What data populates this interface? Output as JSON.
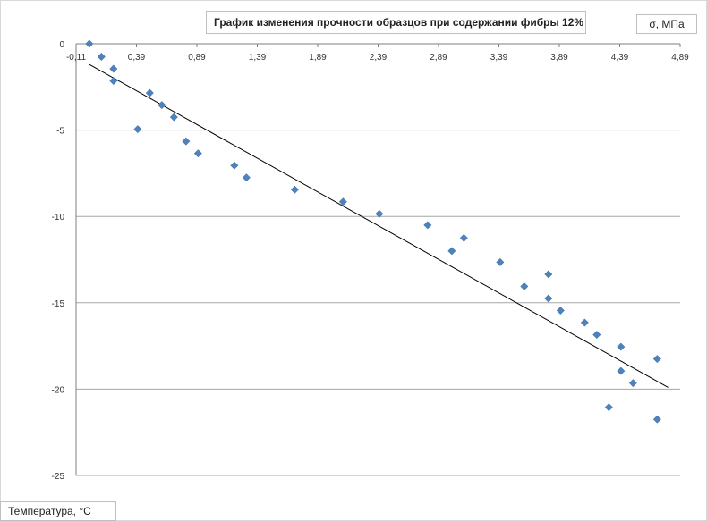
{
  "chart_data": {
    "type": "scatter",
    "title": "График изменения прочности образцов при содержании фибры 12%",
    "xlabel": "Температура, °С",
    "ylabel": "σ, МПа",
    "xlim": [
      -0.11,
      4.89
    ],
    "ylim": [
      -25,
      0
    ],
    "x_ticks": [
      -0.11,
      0.39,
      0.89,
      1.39,
      1.89,
      2.39,
      2.89,
      3.39,
      3.89,
      4.39,
      4.89
    ],
    "x_tick_labels": [
      "-0,11",
      "0,39",
      "0,89",
      "1,39",
      "1,89",
      "2,39",
      "2,89",
      "3,39",
      "3,89",
      "4,39",
      "4,89"
    ],
    "y_ticks": [
      0,
      -5,
      -10,
      -15,
      -20,
      -25
    ],
    "y_tick_labels": [
      "0",
      "-5",
      "-10",
      "-15",
      "-20",
      "-25"
    ],
    "grid": "horizontal",
    "marker_color": "#4f81bd",
    "series": [
      {
        "points": [
          [
            0.0,
            0.0
          ],
          [
            0.1,
            -0.75
          ],
          [
            0.2,
            -1.45
          ],
          [
            0.2,
            -2.15
          ],
          [
            0.4,
            -4.95
          ],
          [
            0.5,
            -2.85
          ],
          [
            0.6,
            -3.55
          ],
          [
            0.7,
            -4.25
          ],
          [
            0.8,
            -5.65
          ],
          [
            0.9,
            -6.35
          ],
          [
            1.2,
            -7.05
          ],
          [
            1.3,
            -7.75
          ],
          [
            1.7,
            -8.45
          ],
          [
            2.1,
            -9.15
          ],
          [
            2.4,
            -9.85
          ],
          [
            2.8,
            -10.5
          ],
          [
            3.0,
            -12.0
          ],
          [
            3.1,
            -11.25
          ],
          [
            3.4,
            -12.65
          ],
          [
            3.6,
            -14.05
          ],
          [
            3.8,
            -13.35
          ],
          [
            3.8,
            -14.75
          ],
          [
            3.9,
            -15.45
          ],
          [
            4.1,
            -16.15
          ],
          [
            4.2,
            -16.85
          ],
          [
            4.3,
            -21.05
          ],
          [
            4.4,
            -17.55
          ],
          [
            4.4,
            -18.95
          ],
          [
            4.5,
            -19.65
          ],
          [
            4.7,
            -18.25
          ],
          [
            4.7,
            -21.75
          ]
        ]
      }
    ],
    "trendline": {
      "x": [
        0.0,
        4.79
      ],
      "y": [
        -1.2,
        -19.9
      ],
      "color": "#000000"
    }
  }
}
